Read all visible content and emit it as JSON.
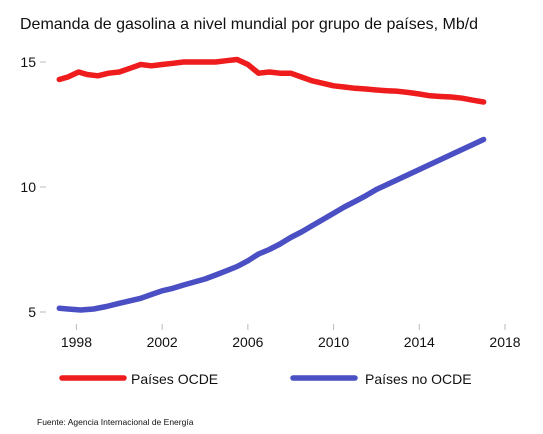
{
  "chart_data": {
    "type": "line",
    "title": "Demanda de gasolina a nivel mundial por grupo de países, Mb/d",
    "xlabel": "",
    "ylabel": "",
    "xlim": [
      1997,
      2018
    ],
    "ylim": [
      5,
      15
    ],
    "yticks": [
      5,
      10,
      15
    ],
    "xticks": [
      1998,
      2002,
      2006,
      2010,
      2014,
      2018
    ],
    "grid": false,
    "legend_position": "bottom",
    "source": "Fuente: Agencia Internacional de Energía",
    "series": [
      {
        "name": "Países OCDE",
        "color": "#ee1c1c",
        "x": [
          1997.2,
          1997.6,
          1998.1,
          1998.5,
          1999.0,
          1999.5,
          2000.0,
          2000.5,
          2001.0,
          2001.5,
          2002.0,
          2002.5,
          2003.0,
          2003.5,
          2004.0,
          2004.5,
          2005.0,
          2005.5,
          2006.0,
          2006.5,
          2007.0,
          2007.5,
          2008.0,
          2008.5,
          2009.0,
          2009.5,
          2010.0,
          2010.5,
          2011.0,
          2011.5,
          2012.0,
          2012.5,
          2013.0,
          2013.5,
          2014.0,
          2014.5,
          2015.0,
          2015.5,
          2016.0,
          2016.5,
          2017.0
        ],
        "values": [
          14.3,
          14.4,
          14.6,
          14.5,
          14.45,
          14.55,
          14.6,
          14.75,
          14.9,
          14.85,
          14.9,
          14.95,
          15.0,
          15.0,
          15.0,
          15.0,
          15.05,
          15.1,
          14.9,
          14.55,
          14.6,
          14.55,
          14.55,
          14.4,
          14.25,
          14.15,
          14.05,
          14.0,
          13.95,
          13.92,
          13.88,
          13.85,
          13.83,
          13.78,
          13.72,
          13.65,
          13.62,
          13.6,
          13.55,
          13.47,
          13.4
        ]
      },
      {
        "name": "Países no OCDE",
        "color": "#4b4fc4",
        "x": [
          1997.2,
          1997.6,
          1998.2,
          1998.8,
          1999.4,
          2000.0,
          2000.5,
          2001.0,
          2001.5,
          2002.0,
          2002.5,
          2003.0,
          2003.5,
          2004.0,
          2004.5,
          2005.0,
          2005.5,
          2006.0,
          2006.5,
          2007.0,
          2007.5,
          2008.0,
          2008.5,
          2009.0,
          2009.5,
          2010.0,
          2010.5,
          2011.0,
          2011.5,
          2012.0,
          2012.5,
          2013.0,
          2013.5,
          2014.0,
          2014.5,
          2015.0,
          2015.5,
          2016.0,
          2016.5,
          2017.0
        ],
        "values": [
          5.15,
          5.12,
          5.08,
          5.12,
          5.22,
          5.35,
          5.45,
          5.55,
          5.7,
          5.85,
          5.95,
          6.08,
          6.2,
          6.32,
          6.48,
          6.65,
          6.82,
          7.05,
          7.32,
          7.5,
          7.72,
          7.98,
          8.2,
          8.45,
          8.7,
          8.95,
          9.2,
          9.42,
          9.65,
          9.9,
          10.1,
          10.3,
          10.5,
          10.7,
          10.9,
          11.1,
          11.3,
          11.5,
          11.7,
          11.9
        ]
      }
    ]
  }
}
